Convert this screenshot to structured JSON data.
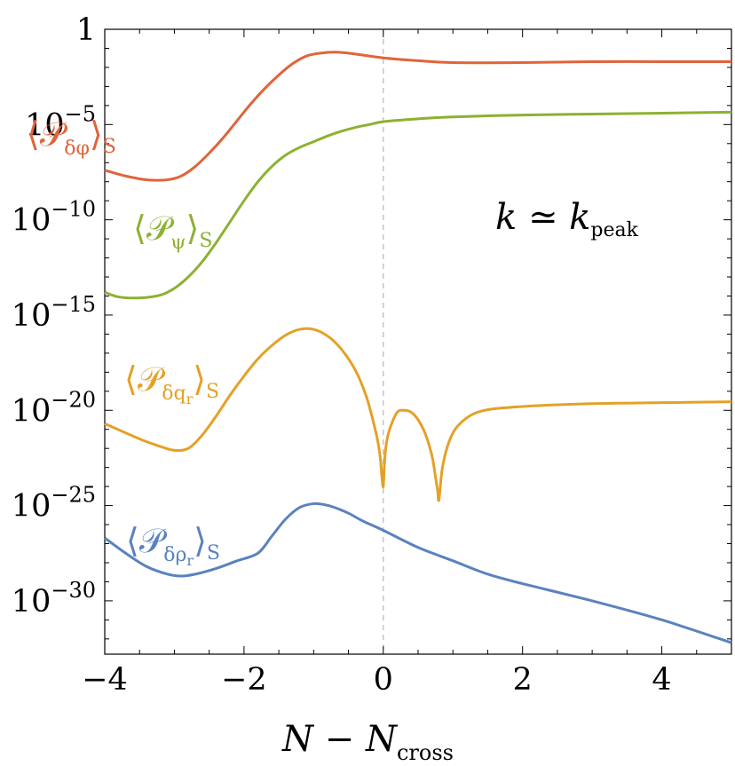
{
  "chart_data": {
    "type": "line",
    "xlabel": "N − N",
    "xlabel_sub": "cross",
    "ylabel": "",
    "xlim": [
      -4,
      5
    ],
    "ylim": [
      -32.8,
      0
    ],
    "y_scale": "log10",
    "x_ticks": [
      {
        "value": -4,
        "label": "−4"
      },
      {
        "value": -2,
        "label": "−2"
      },
      {
        "value": 0,
        "label": "0"
      },
      {
        "value": 2,
        "label": "2"
      },
      {
        "value": 4,
        "label": "4"
      }
    ],
    "y_ticks": [
      {
        "value": 0,
        "base": "1",
        "exp": ""
      },
      {
        "value": -5,
        "base": "10",
        "exp": "−5"
      },
      {
        "value": -10,
        "base": "10",
        "exp": "−10"
      },
      {
        "value": -15,
        "base": "10",
        "exp": "−15"
      },
      {
        "value": -20,
        "base": "10",
        "exp": "−20"
      },
      {
        "value": -25,
        "base": "10",
        "exp": "−25"
      },
      {
        "value": -30,
        "base": "10",
        "exp": "−30"
      }
    ],
    "reference_line": {
      "x": 0,
      "style": "dashed"
    },
    "annotation": {
      "main": "k ≃ k",
      "sub": "peak"
    },
    "series": [
      {
        "label_main": "⟨𝒫",
        "label_sub": "δφ",
        "label_end": "⟩",
        "label_tail": "S",
        "color": "#e0643a",
        "x": [
          -4,
          -3.7,
          -3.4,
          -3.1,
          -2.9,
          -2.7,
          -2.5,
          -2.3,
          -2.1,
          -1.9,
          -1.7,
          -1.5,
          -1.3,
          -1.1,
          -0.9,
          -0.7,
          -0.5,
          -0.3,
          0,
          0.5,
          1,
          2,
          3,
          4,
          5
        ],
        "y": [
          -7.4,
          -7.7,
          -7.9,
          -7.9,
          -7.7,
          -7.2,
          -6.5,
          -5.7,
          -4.8,
          -3.9,
          -3.1,
          -2.4,
          -1.8,
          -1.4,
          -1.25,
          -1.2,
          -1.25,
          -1.35,
          -1.5,
          -1.65,
          -1.75,
          -1.75,
          -1.7,
          -1.7,
          -1.7
        ]
      },
      {
        "label_main": "⟨𝒫",
        "label_sub": "ψ",
        "label_end": "⟩",
        "label_tail": "S",
        "color": "#8db131",
        "x": [
          -4,
          -3.8,
          -3.5,
          -3.2,
          -3,
          -2.8,
          -2.6,
          -2.4,
          -2.2,
          -2,
          -1.8,
          -1.6,
          -1.4,
          -1.2,
          -1,
          -0.8,
          -0.6,
          -0.4,
          -0.2,
          0,
          0.5,
          1,
          2,
          3,
          4,
          5
        ],
        "y": [
          -13.8,
          -14.05,
          -14.1,
          -13.95,
          -13.6,
          -13.0,
          -12.2,
          -11.2,
          -10.1,
          -9.0,
          -8.0,
          -7.2,
          -6.6,
          -6.2,
          -5.9,
          -5.6,
          -5.35,
          -5.15,
          -5.0,
          -4.85,
          -4.7,
          -4.6,
          -4.5,
          -4.45,
          -4.4,
          -4.35
        ]
      },
      {
        "label_main": "⟨𝒫",
        "label_sub": "δq",
        "label_sub2": "r",
        "label_end": "⟩",
        "label_tail": "S",
        "color": "#e4a127",
        "x": [
          -4,
          -3.5,
          -3.2,
          -3,
          -2.8,
          -2.6,
          -2.4,
          -2.2,
          -2,
          -1.8,
          -1.6,
          -1.4,
          -1.2,
          -1.0,
          -0.8,
          -0.6,
          -0.4,
          -0.25,
          -0.15,
          -0.08,
          -0.04,
          -0.02,
          0,
          0.02,
          0.05,
          0.1,
          0.2,
          0.3,
          0.4,
          0.5,
          0.6,
          0.7,
          0.75,
          0.78,
          0.8,
          0.85,
          0.95,
          1.1,
          1.4,
          2,
          3,
          4,
          5
        ],
        "y": [
          -20.7,
          -21.5,
          -21.9,
          -22.1,
          -22.0,
          -21.3,
          -20.3,
          -19.2,
          -18.2,
          -17.3,
          -16.6,
          -16.05,
          -15.75,
          -15.75,
          -16.1,
          -16.8,
          -17.9,
          -19.2,
          -20.5,
          -21.6,
          -22.6,
          -23.5,
          -24.0,
          -22.6,
          -21.6,
          -20.9,
          -20.1,
          -20.0,
          -20.1,
          -20.5,
          -21.2,
          -22.4,
          -23.5,
          -24.2,
          -24.7,
          -23.0,
          -21.6,
          -20.7,
          -20.05,
          -19.8,
          -19.65,
          -19.6,
          -19.55
        ]
      },
      {
        "label_main": "⟨𝒫",
        "label_sub": "δρ",
        "label_sub2": "r",
        "label_end": "⟩",
        "label_tail": "S",
        "color": "#5b82bf",
        "x": [
          -4,
          -3.7,
          -3.4,
          -3.1,
          -2.9,
          -2.7,
          -2.4,
          -2.1,
          -1.8,
          -1.6,
          -1.4,
          -1.2,
          -1.0,
          -0.85,
          -0.7,
          -0.5,
          -0.3,
          0,
          0.5,
          1,
          1.5,
          2,
          3,
          4,
          5
        ],
        "y": [
          -26.7,
          -27.5,
          -28.2,
          -28.6,
          -28.7,
          -28.6,
          -28.3,
          -27.9,
          -27.5,
          -26.6,
          -25.7,
          -25.1,
          -24.9,
          -24.95,
          -25.1,
          -25.4,
          -25.8,
          -26.3,
          -27.2,
          -27.9,
          -28.6,
          -29.1,
          -30.0,
          -31.0,
          -32.2
        ]
      }
    ]
  }
}
